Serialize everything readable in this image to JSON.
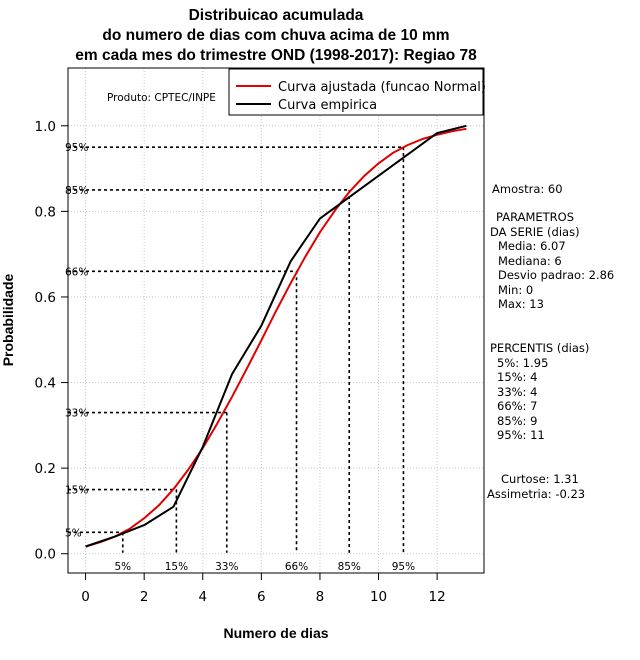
{
  "chart_data": {
    "type": "line",
    "title_lines": [
      "Distribuicao acumulada",
      "do numero de dias com chuva acima de 10 mm",
      "em cada mes do trimestre OND (1998-2017): Regiao 78"
    ],
    "xlabel": "Numero de dias",
    "ylabel": "Probabilidade",
    "xlim": [
      -0.6,
      13.6
    ],
    "ylim": [
      -0.045,
      1.135
    ],
    "xticks": [
      "0",
      "2",
      "4",
      "6",
      "8",
      "10",
      "12"
    ],
    "xtick_values": [
      0,
      2,
      4,
      6,
      8,
      10,
      12
    ],
    "yticks": [
      "0.0",
      "0.2",
      "0.4",
      "0.6",
      "0.8",
      "1.0"
    ],
    "ytick_values": [
      0.0,
      0.2,
      0.4,
      0.6,
      0.8,
      1.0
    ],
    "grid": true,
    "series": [
      {
        "name": "Curva ajustada (funcao Normal)",
        "color": "#e00000",
        "x": [
          0,
          0.5,
          1,
          1.5,
          2,
          2.5,
          3,
          3.5,
          4,
          4.5,
          5,
          5.5,
          6,
          6.5,
          7,
          7.5,
          8,
          8.5,
          9,
          9.5,
          10,
          10.5,
          11,
          11.5,
          12,
          12.5,
          13
        ],
        "y": [
          0.017,
          0.027,
          0.04,
          0.058,
          0.083,
          0.113,
          0.151,
          0.196,
          0.247,
          0.305,
          0.367,
          0.432,
          0.499,
          0.567,
          0.632,
          0.694,
          0.751,
          0.801,
          0.845,
          0.882,
          0.912,
          0.937,
          0.955,
          0.969,
          0.979,
          0.987,
          0.993
        ]
      },
      {
        "name": "Curva empirica",
        "color": "#000000",
        "x": [
          0,
          1,
          2,
          3,
          4,
          5,
          6,
          7,
          8,
          9,
          10,
          11,
          12,
          13
        ],
        "y": [
          0.017,
          0.04,
          0.067,
          0.11,
          0.25,
          0.42,
          0.533,
          0.683,
          0.783,
          0.833,
          0.883,
          0.933,
          0.983,
          1.0
        ]
      }
    ],
    "percentile_markers": [
      {
        "label": "5%",
        "x": 1.27,
        "y": 0.05
      },
      {
        "label": "15%",
        "x": 3.1,
        "y": 0.15
      },
      {
        "label": "33%",
        "x": 4.82,
        "y": 0.33
      },
      {
        "label": "66%",
        "x": 7.2,
        "y": 0.66
      },
      {
        "label": "85%",
        "x": 9.0,
        "y": 0.85
      },
      {
        "label": "95%",
        "x": 10.85,
        "y": 0.95
      }
    ],
    "annotation": "Produto: CPTEC/INPE"
  },
  "stats_panel": {
    "amostra": "Amostra: 60",
    "parametros_header": [
      "PARAMETROS",
      "DA SERIE (dias)"
    ],
    "parametros": [
      "Media: 6.07",
      "Mediana: 6",
      "Desvio padrao: 2.86",
      "Min: 0",
      "Max: 13"
    ],
    "percentis_header": "PERCENTIS (dias)",
    "percentis": [
      "5%: 1.95",
      "15%: 4",
      "33%: 4",
      "66%: 7",
      "85%: 9",
      "95%: 11"
    ],
    "curtose": "Curtose: 1.31",
    "assimetria": "Assimetria: -0.23"
  }
}
